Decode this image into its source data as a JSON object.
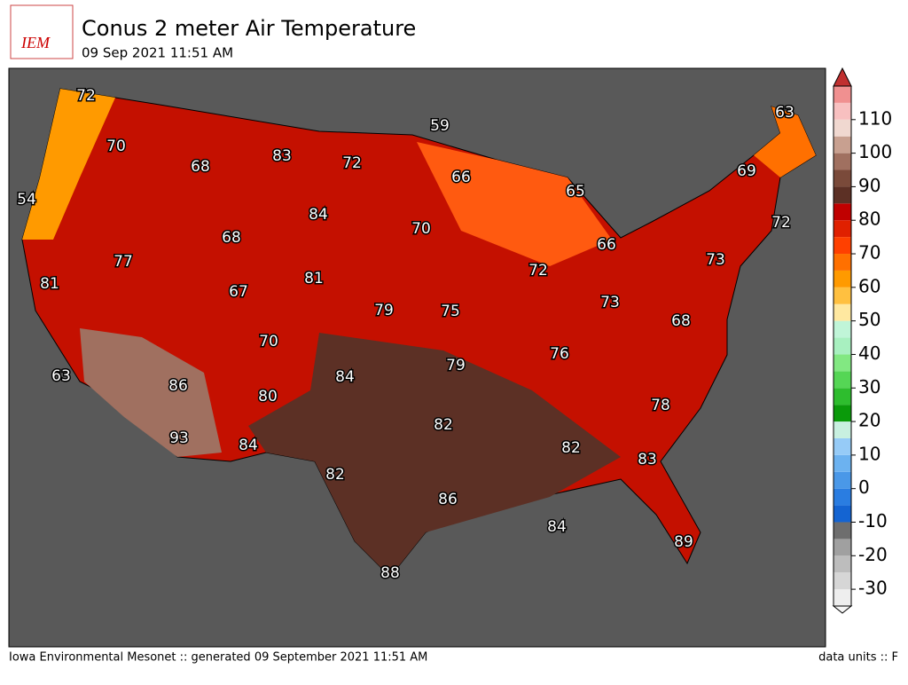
{
  "header": {
    "logo": "IEM",
    "title": "Conus 2 meter Air Temperature",
    "subtitle": "09 Sep 2021 11:51 AM"
  },
  "map": {
    "labels": [
      72,
      70,
      68,
      83,
      72,
      59,
      63,
      69,
      66,
      65,
      84,
      54,
      68,
      70,
      72,
      66,
      77,
      81,
      81,
      72,
      73,
      67,
      79,
      75,
      73,
      68,
      70,
      76,
      79,
      84,
      63,
      86,
      80,
      78,
      82,
      93,
      84,
      82,
      83,
      82,
      86,
      84,
      89,
      88
    ]
  },
  "colorbar": {
    "lim": [
      -35,
      120
    ],
    "ticks": [
      -30,
      -20,
      -10,
      0,
      10,
      20,
      30,
      40,
      50,
      60,
      70,
      80,
      90,
      100,
      110
    ],
    "colors": [
      "#eeeeee",
      "#d6d6d6",
      "#bdbdbd",
      "#a0a0a0",
      "#6e6e6e",
      "#1464d2",
      "#2a7de1",
      "#4a98e8",
      "#6cb2f0",
      "#96cbf7",
      "#c8f0e0",
      "#0a9a0a",
      "#2ebd2e",
      "#55d655",
      "#82e882",
      "#a8f0c0",
      "#c0f5d8",
      "#ffe8a0",
      "#ffc040",
      "#ff9a00",
      "#ff7000",
      "#ff4000",
      "#e02000",
      "#c00000",
      "#5c3025",
      "#7a4a3a",
      "#a07060",
      "#c8a090",
      "#f0d8d0",
      "#f8c0c0",
      "#f09090"
    ],
    "under": "#f5f5f5",
    "over": "#c03030"
  },
  "footer": {
    "left": "Iowa Environmental Mesonet :: generated 09 September 2021 11:51 AM",
    "right": "data units :: F"
  }
}
